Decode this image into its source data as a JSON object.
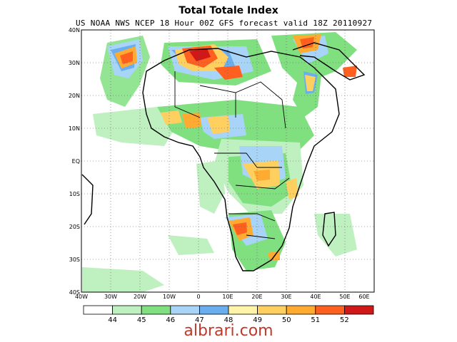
{
  "map": {
    "title": "Total Totale Index",
    "subtitle": "US NOAA NWS NCEP 18 Hour 00Z GFS forecast valid 18Z 20110927",
    "lat_labels": [
      "40N",
      "30N",
      "20N",
      "10N",
      "EQ",
      "10S",
      "20S",
      "30S",
      "40S"
    ],
    "lon_labels": [
      "40W",
      "30W",
      "20W",
      "10W",
      "0",
      "10E",
      "20E",
      "30E",
      "40E",
      "50E",
      "60E"
    ]
  },
  "legend": {
    "colors": [
      "#ffffff",
      "#bff0bf",
      "#80e080",
      "#a8d4f8",
      "#6aaef0",
      "#fff4a8",
      "#ffd060",
      "#ffaa30",
      "#ff6020",
      "#d01818"
    ],
    "labels": [
      "44",
      "45",
      "46",
      "47",
      "48",
      "49",
      "50",
      "51",
      "52"
    ]
  },
  "watermark": "albrari.com"
}
